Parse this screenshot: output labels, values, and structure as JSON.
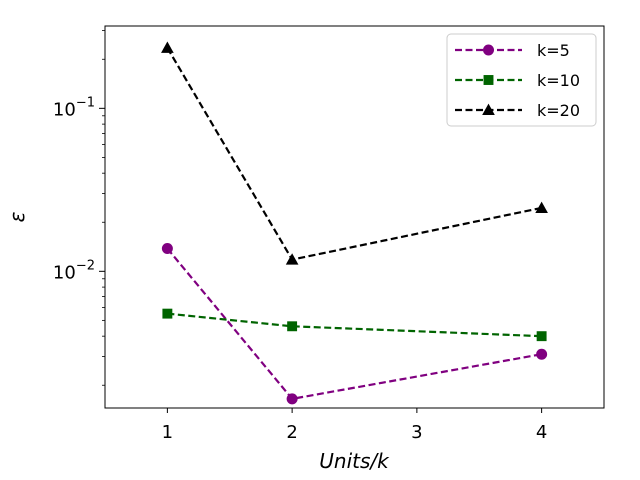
{
  "chart_data": {
    "type": "line",
    "title": "",
    "xlabel": "Units/k",
    "ylabel": "ε",
    "x": [
      1,
      2,
      4
    ],
    "x_tick_labels": [
      "1",
      "2",
      "3",
      "4"
    ],
    "x_ticks": [
      1,
      2,
      3,
      4
    ],
    "xlim": [
      0.5,
      4.5
    ],
    "y_scale": "log",
    "ylim": [
      0.00145,
      0.32
    ],
    "y_ticks": [
      0.01,
      0.1
    ],
    "y_tick_labels": [
      {
        "base": "10",
        "exp": "−2"
      },
      {
        "base": "10",
        "exp": "−1"
      }
    ],
    "grid": false,
    "legend_position": "top-right",
    "series": [
      {
        "name": "k=5",
        "color": "#800080",
        "marker": "circle",
        "linestyle": "dashed",
        "values": [
          0.0138,
          0.00165,
          0.0031
        ]
      },
      {
        "name": "k=10",
        "color": "#006400",
        "marker": "square",
        "linestyle": "dashed",
        "values": [
          0.0055,
          0.0046,
          0.004
        ]
      },
      {
        "name": "k=20",
        "color": "#000000",
        "marker": "triangle",
        "linestyle": "dashed",
        "values": [
          0.235,
          0.0118,
          0.0245
        ]
      }
    ]
  }
}
